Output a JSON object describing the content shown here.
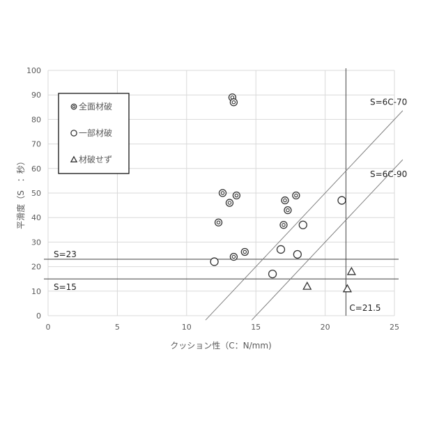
{
  "chart_data": {
    "type": "scatter",
    "xlabel": "クッション性（C：N/mm)",
    "ylabel": "平滑度（S　：秒）",
    "xlim": [
      0,
      25
    ],
    "ylim": [
      0,
      100
    ],
    "xticks": [
      0,
      5,
      10,
      15,
      20,
      25
    ],
    "yticks": [
      0,
      10,
      20,
      30,
      40,
      50,
      60,
      70,
      80,
      90,
      100
    ],
    "grid": true,
    "legend_position": "top-left",
    "series": [
      {
        "name": "全面材破",
        "marker": "double-circle",
        "points": [
          [
            13.3,
            89
          ],
          [
            13.4,
            87
          ],
          [
            12.6,
            50
          ],
          [
            13.6,
            49
          ],
          [
            13.1,
            46
          ],
          [
            12.3,
            38
          ],
          [
            13.4,
            24
          ],
          [
            14.2,
            26
          ],
          [
            17.1,
            47
          ],
          [
            17.9,
            49
          ],
          [
            17.3,
            43
          ],
          [
            17.0,
            37
          ]
        ]
      },
      {
        "name": "一部材破",
        "marker": "circle",
        "points": [
          [
            12.0,
            22
          ],
          [
            16.8,
            27
          ],
          [
            18.0,
            25
          ],
          [
            16.2,
            17
          ],
          [
            18.4,
            37
          ],
          [
            21.2,
            47
          ]
        ]
      },
      {
        "name": "材破せず",
        "marker": "triangle",
        "points": [
          [
            18.7,
            12
          ],
          [
            21.9,
            18
          ],
          [
            21.6,
            11
          ]
        ]
      }
    ],
    "reference_lines": [
      {
        "label": "S=23",
        "kind": "horizontal",
        "value": 23
      },
      {
        "label": "S=15",
        "kind": "horizontal",
        "value": 15
      },
      {
        "label": "C=21.5",
        "kind": "vertical",
        "value": 21.5
      },
      {
        "label": "S=6C-70",
        "kind": "diagonal",
        "slope": 6,
        "intercept": -70
      },
      {
        "label": "S=6C-90",
        "kind": "diagonal",
        "slope": 6,
        "intercept": -90
      }
    ],
    "colors": {
      "grid": "#d9d9d9",
      "axis_text": "#595959",
      "marker": "#333333",
      "ref_line": "#404040",
      "diag_line": "#7f7f7f"
    }
  }
}
